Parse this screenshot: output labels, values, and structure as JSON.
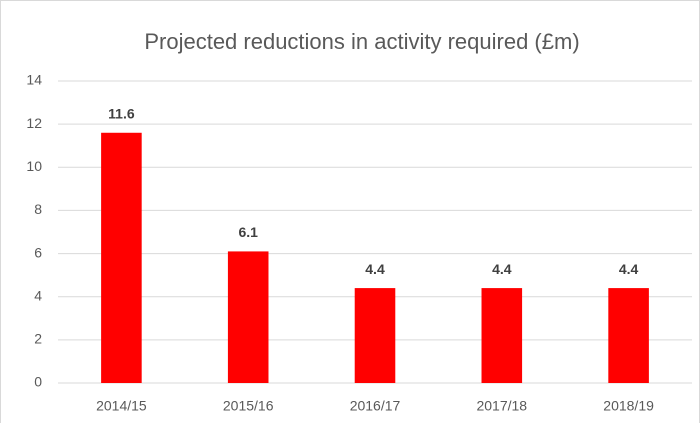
{
  "chart_data": {
    "type": "bar",
    "title": "Projected reductions in activity required (£m)",
    "categories": [
      "2014/15",
      "2015/16",
      "2016/17",
      "2017/18",
      "2018/19"
    ],
    "values": [
      11.6,
      6.1,
      4.4,
      4.4,
      4.4
    ],
    "color": "#ff0000",
    "ylim": [
      0,
      14
    ],
    "yticks": [
      0,
      2,
      4,
      6,
      8,
      10,
      12,
      14
    ],
    "grid": true,
    "data_labels": true
  }
}
